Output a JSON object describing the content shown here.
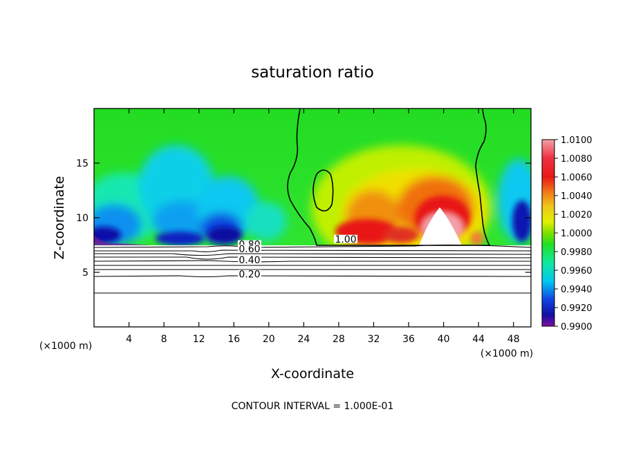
{
  "chart_data": {
    "type": "heatmap",
    "title": "saturation ratio",
    "xlabel": "X-coordinate",
    "ylabel": "Z-coordinate",
    "x_unit_label_left": "(×1000 m)",
    "x_unit_label_right": "(×1000 m)",
    "footer": "CONTOUR INTERVAL = 1.000E-01",
    "xlim": [
      0,
      50
    ],
    "ylim": [
      0,
      20
    ],
    "x_ticks": [
      4,
      8,
      12,
      16,
      20,
      24,
      28,
      32,
      36,
      40,
      44,
      48
    ],
    "y_ticks": [
      5,
      10,
      15
    ],
    "colorbar": {
      "ticks": [
        "1.0100",
        "1.0080",
        "1.0060",
        "1.0040",
        "1.0020",
        "1.0000",
        "0.9980",
        "0.9960",
        "0.9940",
        "0.9920",
        "0.9900"
      ],
      "min": 0.99,
      "max": 1.01
    },
    "contour_levels": [
      {
        "label": "1.00",
        "x": 28.8,
        "z": 7.8
      },
      {
        "label": "0.80",
        "x": 17.8,
        "z": 7.3
      },
      {
        "label": "0.60",
        "x": 17.8,
        "z": 6.9
      },
      {
        "label": "0.40",
        "x": 17.8,
        "z": 5.9
      },
      {
        "label": "0.20",
        "x": 17.8,
        "z": 4.6
      }
    ]
  }
}
